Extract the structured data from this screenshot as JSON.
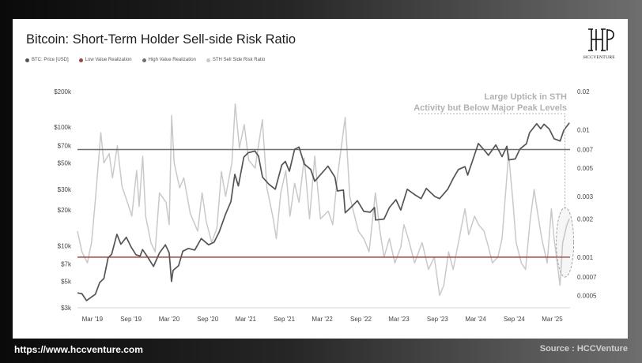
{
  "page": {
    "title": "Bitcoin: Short-Term Holder Sell-side Risk Ratio",
    "logo_text": "HCCVENTURE",
    "footer_url": "https://www.hccventure.com",
    "footer_source": "Source : HCCVenture"
  },
  "colors": {
    "price": "#555555",
    "low_value": "#9c4545",
    "high_value": "#6f6f6f",
    "sth_ratio": "#c9c9c9",
    "annotation": "#b2b2b2"
  },
  "chart_data": {
    "type": "line",
    "title": "Bitcoin: Short-Term Holder Sell-side Risk Ratio",
    "legend": [
      "BTC: Price [USD]",
      "Low Value Realization",
      "High Value Realization",
      "STH Sell Side Risk Ratio"
    ],
    "legend_placement": "top-left",
    "grid": false,
    "x_range": [
      "2018-12-20",
      "2025-05-25"
    ],
    "x_ticks": [
      {
        "date": "2019-03-01",
        "label": "Mar '19"
      },
      {
        "date": "2019-09-01",
        "label": "Sep '19"
      },
      {
        "date": "2020-03-01",
        "label": "Mar '20"
      },
      {
        "date": "2020-09-01",
        "label": "Sep '20"
      },
      {
        "date": "2021-03-01",
        "label": "Mar '21"
      },
      {
        "date": "2021-09-01",
        "label": "Sep '21"
      },
      {
        "date": "2022-03-01",
        "label": "Mar '22"
      },
      {
        "date": "2022-09-01",
        "label": "Sep '22"
      },
      {
        "date": "2023-03-01",
        "label": "Mar '23"
      },
      {
        "date": "2023-09-01",
        "label": "Sep '23"
      },
      {
        "date": "2024-03-01",
        "label": "Mar '24"
      },
      {
        "date": "2024-09-01",
        "label": "Sep '24"
      },
      {
        "date": "2025-03-01",
        "label": "Mar '25"
      }
    ],
    "y_left": {
      "scale": "log",
      "range": [
        3000,
        200000
      ],
      "ticks": [
        {
          "value": 3000,
          "label": "$3k"
        },
        {
          "value": 5000,
          "label": "$5k"
        },
        {
          "value": 7000,
          "label": "$7k"
        },
        {
          "value": 10000,
          "label": "$10k"
        },
        {
          "value": 20000,
          "label": "$20k"
        },
        {
          "value": 30000,
          "label": "$30k"
        },
        {
          "value": 50000,
          "label": "$50k"
        },
        {
          "value": 70000,
          "label": "$70k"
        },
        {
          "value": 100000,
          "label": "$100k"
        },
        {
          "value": 200000,
          "label": "$200k"
        }
      ]
    },
    "y_right": {
      "scale": "log",
      "range": [
        0.0004,
        0.02
      ],
      "ticks": [
        {
          "value": 0.0005,
          "label": "0.0005"
        },
        {
          "value": 0.0007,
          "label": "0.0007"
        },
        {
          "value": 0.001,
          "label": "0.001"
        },
        {
          "value": 0.002,
          "label": "0.002"
        },
        {
          "value": 0.003,
          "label": "0.003"
        },
        {
          "value": 0.005,
          "label": "0.005"
        },
        {
          "value": 0.007,
          "label": "0.007"
        },
        {
          "value": 0.01,
          "label": "0.01"
        },
        {
          "value": 0.02,
          "label": "0.02"
        }
      ]
    },
    "thresholds": [
      {
        "name": "High Value Realization",
        "value": 0.007
      },
      {
        "name": "Low Value Realization",
        "value": 0.001
      }
    ],
    "annotation": {
      "lines": [
        "Large Uptick in STH",
        "Activity but Below Major Peak Levels"
      ],
      "target": {
        "date": "2025-05-01",
        "value": 0.0012
      }
    },
    "series": [
      {
        "name": "BTC: Price [USD]",
        "axis": "left",
        "points": [
          [
            "2018-12-20",
            4000
          ],
          [
            "2019-01-10",
            3950
          ],
          [
            "2019-02-01",
            3450
          ],
          [
            "2019-02-20",
            3650
          ],
          [
            "2019-03-15",
            3900
          ],
          [
            "2019-04-05",
            4900
          ],
          [
            "2019-04-25",
            5300
          ],
          [
            "2019-05-15",
            7900
          ],
          [
            "2019-06-01",
            8500
          ],
          [
            "2019-06-26",
            12500
          ],
          [
            "2019-07-15",
            10300
          ],
          [
            "2019-08-10",
            11800
          ],
          [
            "2019-09-01",
            9800
          ],
          [
            "2019-09-25",
            8400
          ],
          [
            "2019-10-15",
            8200
          ],
          [
            "2019-10-26",
            9300
          ],
          [
            "2019-11-20",
            8000
          ],
          [
            "2019-12-17",
            6700
          ],
          [
            "2020-01-15",
            8700
          ],
          [
            "2020-02-12",
            10200
          ],
          [
            "2020-03-01",
            8700
          ],
          [
            "2020-03-12",
            5000
          ],
          [
            "2020-03-20",
            6200
          ],
          [
            "2020-04-15",
            6800
          ],
          [
            "2020-05-05",
            9000
          ],
          [
            "2020-06-01",
            9500
          ],
          [
            "2020-07-01",
            9200
          ],
          [
            "2020-08-01",
            11500
          ],
          [
            "2020-09-05",
            10200
          ],
          [
            "2020-10-01",
            10700
          ],
          [
            "2020-10-25",
            13000
          ],
          [
            "2020-11-25",
            18500
          ],
          [
            "2020-12-20",
            23500
          ],
          [
            "2021-01-08",
            40000
          ],
          [
            "2021-01-25",
            32000
          ],
          [
            "2021-02-20",
            56000
          ],
          [
            "2021-03-13",
            61000
          ],
          [
            "2021-04-14",
            63000
          ],
          [
            "2021-05-01",
            57000
          ],
          [
            "2021-05-20",
            38000
          ],
          [
            "2021-06-20",
            33000
          ],
          [
            "2021-07-20",
            30000
          ],
          [
            "2021-08-20",
            48000
          ],
          [
            "2021-09-06",
            51500
          ],
          [
            "2021-09-25",
            42500
          ],
          [
            "2021-10-20",
            65000
          ],
          [
            "2021-11-10",
            68000
          ],
          [
            "2021-12-05",
            49000
          ],
          [
            "2022-01-05",
            44000
          ],
          [
            "2022-01-24",
            35000
          ],
          [
            "2022-03-28",
            47000
          ],
          [
            "2022-04-30",
            38000
          ],
          [
            "2022-05-12",
            29000
          ],
          [
            "2022-06-10",
            29500
          ],
          [
            "2022-06-18",
            19000
          ],
          [
            "2022-07-15",
            21000
          ],
          [
            "2022-08-15",
            24000
          ],
          [
            "2022-09-15",
            19500
          ],
          [
            "2022-10-15",
            19200
          ],
          [
            "2022-11-05",
            21000
          ],
          [
            "2022-11-10",
            16500
          ],
          [
            "2022-12-20",
            16800
          ],
          [
            "2023-01-15",
            21000
          ],
          [
            "2023-02-15",
            24500
          ],
          [
            "2023-03-10",
            20000
          ],
          [
            "2023-04-10",
            30000
          ],
          [
            "2023-05-15",
            27000
          ],
          [
            "2023-06-15",
            25000
          ],
          [
            "2023-07-10",
            30500
          ],
          [
            "2023-08-20",
            26000
          ],
          [
            "2023-09-11",
            25000
          ],
          [
            "2023-10-20",
            30000
          ],
          [
            "2023-11-15",
            37000
          ],
          [
            "2023-12-10",
            44000
          ],
          [
            "2024-01-10",
            46500
          ],
          [
            "2024-01-23",
            39500
          ],
          [
            "2024-02-15",
            52000
          ],
          [
            "2024-03-14",
            73000
          ],
          [
            "2024-04-15",
            63000
          ],
          [
            "2024-05-01",
            58000
          ],
          [
            "2024-06-05",
            71000
          ],
          [
            "2024-07-05",
            56500
          ],
          [
            "2024-07-28",
            69000
          ],
          [
            "2024-08-05",
            53000
          ],
          [
            "2024-09-06",
            54000
          ],
          [
            "2024-09-28",
            65500
          ],
          [
            "2024-10-29",
            72500
          ],
          [
            "2024-11-13",
            90000
          ],
          [
            "2024-12-17",
            107000
          ],
          [
            "2025-01-05",
            97000
          ],
          [
            "2025-01-21",
            106000
          ],
          [
            "2025-02-15",
            96500
          ],
          [
            "2025-03-10",
            80000
          ],
          [
            "2025-04-08",
            76500
          ],
          [
            "2025-04-25",
            94000
          ],
          [
            "2025-05-22",
            109000
          ]
        ]
      },
      {
        "name": "STH Sell Side Risk Ratio",
        "axis": "right",
        "points": [
          [
            "2018-12-20",
            0.0016
          ],
          [
            "2019-01-10",
            0.0011
          ],
          [
            "2019-02-05",
            0.0009
          ],
          [
            "2019-02-25",
            0.0013
          ],
          [
            "2019-03-15",
            0.0028
          ],
          [
            "2019-04-10",
            0.0095
          ],
          [
            "2019-04-25",
            0.0055
          ],
          [
            "2019-05-20",
            0.0065
          ],
          [
            "2019-06-05",
            0.0042
          ],
          [
            "2019-06-28",
            0.0075
          ],
          [
            "2019-07-20",
            0.0036
          ],
          [
            "2019-08-15",
            0.0027
          ],
          [
            "2019-09-05",
            0.0021
          ],
          [
            "2019-09-28",
            0.0048
          ],
          [
            "2019-10-10",
            0.0025
          ],
          [
            "2019-10-27",
            0.0062
          ],
          [
            "2019-11-10",
            0.0021
          ],
          [
            "2019-12-05",
            0.0013
          ],
          [
            "2019-12-25",
            0.0011
          ],
          [
            "2020-01-15",
            0.0032
          ],
          [
            "2020-02-15",
            0.0027
          ],
          [
            "2020-03-01",
            0.0018
          ],
          [
            "2020-03-13",
            0.013
          ],
          [
            "2020-03-25",
            0.0055
          ],
          [
            "2020-04-20",
            0.0035
          ],
          [
            "2020-05-10",
            0.0042
          ],
          [
            "2020-06-10",
            0.0022
          ],
          [
            "2020-07-15",
            0.0016
          ],
          [
            "2020-08-05",
            0.0032
          ],
          [
            "2020-08-25",
            0.0019
          ],
          [
            "2020-09-20",
            0.0013
          ],
          [
            "2020-10-15",
            0.0017
          ],
          [
            "2020-11-05",
            0.0047
          ],
          [
            "2020-11-25",
            0.003
          ],
          [
            "2020-12-25",
            0.0055
          ],
          [
            "2021-01-10",
            0.016
          ],
          [
            "2021-01-30",
            0.0072
          ],
          [
            "2021-02-22",
            0.011
          ],
          [
            "2021-03-15",
            0.0058
          ],
          [
            "2021-04-15",
            0.005
          ],
          [
            "2021-05-19",
            0.012
          ],
          [
            "2021-06-10",
            0.0035
          ],
          [
            "2021-07-10",
            0.002
          ],
          [
            "2021-07-25",
            0.0014
          ],
          [
            "2021-08-15",
            0.0032
          ],
          [
            "2021-09-08",
            0.0048
          ],
          [
            "2021-09-28",
            0.0021
          ],
          [
            "2021-10-20",
            0.0038
          ],
          [
            "2021-11-10",
            0.0027
          ],
          [
            "2021-12-05",
            0.006
          ],
          [
            "2021-12-30",
            0.002
          ],
          [
            "2022-01-24",
            0.0062
          ],
          [
            "2022-02-20",
            0.002
          ],
          [
            "2022-03-29",
            0.0023
          ],
          [
            "2022-04-20",
            0.0018
          ],
          [
            "2022-05-10",
            0.004
          ],
          [
            "2022-06-18",
            0.0125
          ],
          [
            "2022-07-10",
            0.003
          ],
          [
            "2022-07-30",
            0.0022
          ],
          [
            "2022-08-20",
            0.0016
          ],
          [
            "2022-09-15",
            0.0014
          ],
          [
            "2022-10-10",
            0.0011
          ],
          [
            "2022-11-09",
            0.0032
          ],
          [
            "2022-12-01",
            0.0016
          ],
          [
            "2022-12-20",
            0.001
          ],
          [
            "2023-01-15",
            0.0014
          ],
          [
            "2023-02-10",
            0.0009
          ],
          [
            "2023-03-10",
            0.0012
          ],
          [
            "2023-03-25",
            0.0018
          ],
          [
            "2023-04-15",
            0.0014
          ],
          [
            "2023-05-15",
            0.0009
          ],
          [
            "2023-06-20",
            0.0013
          ],
          [
            "2023-07-20",
            0.0008
          ],
          [
            "2023-08-17",
            0.001
          ],
          [
            "2023-09-11",
            0.0005
          ],
          [
            "2023-10-01",
            0.0006
          ],
          [
            "2023-10-24",
            0.0011
          ],
          [
            "2023-11-15",
            0.0008
          ],
          [
            "2023-12-10",
            0.0013
          ],
          [
            "2024-01-10",
            0.0024
          ],
          [
            "2024-01-28",
            0.0015
          ],
          [
            "2024-02-25",
            0.0021
          ],
          [
            "2024-03-15",
            0.0018
          ],
          [
            "2024-04-10",
            0.0016
          ],
          [
            "2024-05-01",
            0.0012
          ],
          [
            "2024-05-20",
            0.0009
          ],
          [
            "2024-06-15",
            0.001
          ],
          [
            "2024-07-05",
            0.0014
          ],
          [
            "2024-08-05",
            0.0065
          ],
          [
            "2024-08-25",
            0.0028
          ],
          [
            "2024-09-10",
            0.0013
          ],
          [
            "2024-10-05",
            0.0009
          ],
          [
            "2024-10-25",
            0.0008
          ],
          [
            "2024-11-15",
            0.0019
          ],
          [
            "2024-12-05",
            0.0034
          ],
          [
            "2024-12-20",
            0.0023
          ],
          [
            "2025-01-10",
            0.0014
          ],
          [
            "2025-02-05",
            0.0009
          ],
          [
            "2025-02-25",
            0.0024
          ],
          [
            "2025-03-10",
            0.0014
          ],
          [
            "2025-03-25",
            0.0009
          ],
          [
            "2025-04-07",
            0.0006
          ],
          [
            "2025-04-20",
            0.0013
          ],
          [
            "2025-05-10",
            0.0018
          ],
          [
            "2025-05-22",
            0.002
          ]
        ]
      }
    ]
  }
}
